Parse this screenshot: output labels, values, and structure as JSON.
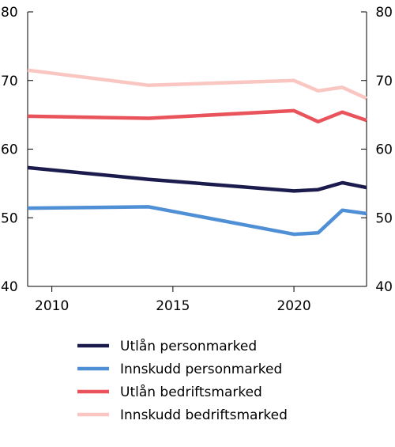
{
  "chart_data": {
    "type": "line",
    "title": "",
    "xlabel": "",
    "ylabel": "",
    "xlim": [
      2009,
      2023
    ],
    "ylim": [
      40,
      80
    ],
    "x_ticks": [
      2010,
      2015,
      2020
    ],
    "x_tick_labels": [
      "2010",
      "2015",
      "2020"
    ],
    "y_ticks": [
      40,
      50,
      60,
      70,
      80
    ],
    "y_tick_labels": [
      "40",
      "50",
      "60",
      "70",
      "80"
    ],
    "grid": false,
    "dual_y_axis": true,
    "legend_position": "bottom",
    "series": [
      {
        "name": "Utlån personmarked",
        "color": "#1c1b4d",
        "points": [
          [
            2009,
            57.3
          ],
          [
            2014,
            55.6
          ],
          [
            2020,
            53.9
          ],
          [
            2021,
            54.1
          ],
          [
            2022,
            55.1
          ],
          [
            2023,
            54.4
          ]
        ]
      },
      {
        "name": "Innskudd personmarked",
        "color": "#4f8fd6",
        "points": [
          [
            2009,
            51.4
          ],
          [
            2014,
            51.6
          ],
          [
            2020,
            47.6
          ],
          [
            2021,
            47.8
          ],
          [
            2022,
            51.1
          ],
          [
            2023,
            50.6
          ]
        ]
      },
      {
        "name": "Utlån bedriftsmarked",
        "color": "#e9545c",
        "points": [
          [
            2009,
            64.8
          ],
          [
            2014,
            64.5
          ],
          [
            2020,
            65.6
          ],
          [
            2021,
            64.0
          ],
          [
            2022,
            65.4
          ],
          [
            2023,
            64.2
          ]
        ]
      },
      {
        "name": "Innskudd bedriftsmarked",
        "color": "#f9c6c2",
        "points": [
          [
            2009,
            71.5
          ],
          [
            2014,
            69.3
          ],
          [
            2020,
            70.0
          ],
          [
            2021,
            68.5
          ],
          [
            2022,
            69.0
          ],
          [
            2023,
            67.4
          ]
        ]
      }
    ]
  }
}
